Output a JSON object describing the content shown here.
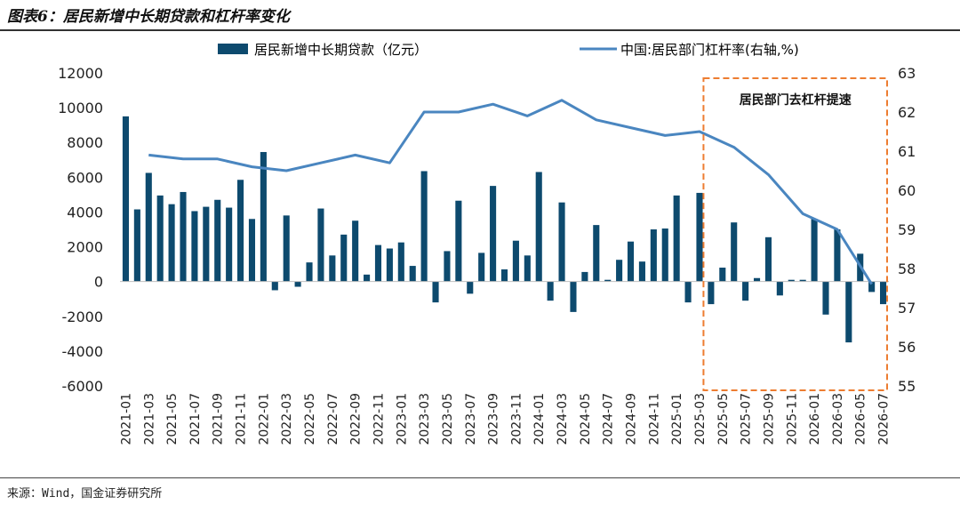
{
  "title": "图表6：居民新增中长期贷款和杠杆率变化",
  "source": "来源：Wind，国金证券研究所",
  "colors": {
    "bars": "#0d4a6e",
    "line": "#4a86c0",
    "box": "#ed7d31"
  },
  "chart_data": {
    "type": "bar+line",
    "categories": [
      "2021-01",
      "2021-02",
      "2021-03",
      "2021-04",
      "2021-05",
      "2021-06",
      "2021-07",
      "2021-08",
      "2021-09",
      "2021-10",
      "2021-11",
      "2021-12",
      "2022-01",
      "2022-02",
      "2022-03",
      "2022-04",
      "2022-05",
      "2022-06",
      "2022-07",
      "2022-08",
      "2022-09",
      "2022-10",
      "2022-11",
      "2022-12",
      "2023-01",
      "2023-02",
      "2023-03",
      "2023-04",
      "2023-05",
      "2023-06",
      "2023-07",
      "2023-08",
      "2023-09",
      "2023-10",
      "2023-11",
      "2023-12",
      "2024-01",
      "2024-02",
      "2024-03",
      "2024-04",
      "2024-05",
      "2024-06",
      "2024-07",
      "2024-08",
      "2024-09",
      "2024-10",
      "2024-11",
      "2024-12",
      "2025-01",
      "2025-02",
      "2025-03",
      "2025-04",
      "2025-05",
      "2025-06",
      "2025-07",
      "2025-08",
      "2025-09",
      "2025-10",
      "2025-11",
      "2025-12",
      "2026-01",
      "2026-02",
      "2026-03",
      "2026-04",
      "2026-05",
      "2026-06",
      "2026-07"
    ],
    "tick_labels": [
      "2021-01",
      "2021-03",
      "2021-05",
      "2021-07",
      "2021-09",
      "2021-11",
      "2022-01",
      "2022-03",
      "2022-05",
      "2022-07",
      "2022-09",
      "2022-11",
      "2023-01",
      "2023-03",
      "2023-05",
      "2023-07",
      "2023-09",
      "2023-11",
      "2024-01",
      "2024-03",
      "2024-05",
      "2024-07",
      "2024-09",
      "2024-11",
      "2025-01",
      "2025-03",
      "2025-05",
      "2025-07",
      "2025-09",
      "2025-11",
      "2026-01",
      "2026-03",
      "2026-05",
      "2026-07"
    ],
    "bar_series": {
      "name": "居民新增中长期贷款（亿元）",
      "values": [
        9500,
        4150,
        6250,
        4950,
        4450,
        5150,
        4050,
        4300,
        4700,
        4250,
        5850,
        3600,
        7450,
        -500,
        3800,
        -300,
        1100,
        4200,
        1500,
        2700,
        3500,
        400,
        2100,
        1900,
        2250,
        900,
        6350,
        -1200,
        1750,
        4650,
        -700,
        1650,
        5500,
        700,
        2350,
        1500,
        6300,
        -1100,
        4550,
        -1750,
        550,
        3250,
        100,
        1250,
        2300,
        1150,
        3000,
        3050,
        4950,
        -1200,
        5100,
        -1300,
        800,
        3400,
        -1100,
        200,
        2550,
        -800,
        100,
        100,
        3600,
        -1900,
        3000,
        -3500,
        1600,
        -600,
        -1300
      ]
    },
    "line_series": {
      "name": "中国:居民部门杠杆率(右轴,%)",
      "points": [
        [
          "2021-03",
          60.9
        ],
        [
          "2021-06",
          60.8
        ],
        [
          "2021-09",
          60.8
        ],
        [
          "2021-12",
          60.6
        ],
        [
          "2022-03",
          60.5
        ],
        [
          "2022-06",
          60.7
        ],
        [
          "2022-09",
          60.9
        ],
        [
          "2022-12",
          60.7
        ],
        [
          "2023-03",
          62.0
        ],
        [
          "2023-06",
          62.0
        ],
        [
          "2023-09",
          62.2
        ],
        [
          "2023-12",
          61.9
        ],
        [
          "2024-03",
          62.3
        ],
        [
          "2024-06",
          61.8
        ],
        [
          "2024-09",
          61.6
        ],
        [
          "2024-12",
          61.4
        ],
        [
          "2025-03",
          61.5
        ],
        [
          "2025-06",
          61.1
        ],
        [
          "2025-09",
          60.4
        ],
        [
          "2025-12",
          59.4
        ],
        [
          "2026-03",
          59.0
        ],
        [
          "2026-06",
          57.6
        ]
      ]
    },
    "y_left": {
      "min": -6000,
      "max": 12000,
      "step": 2000,
      "ticks": [
        "-6000",
        "-4000",
        "-2000",
        "0",
        "2000",
        "4000",
        "6000",
        "8000",
        "10000",
        "12000"
      ]
    },
    "y_right": {
      "min": 55,
      "max": 63,
      "step": 1,
      "ticks": [
        "55",
        "56",
        "57",
        "58",
        "59",
        "60",
        "61",
        "62",
        "63"
      ]
    },
    "legend_placement": "top",
    "annotation": {
      "text": "居民部门去杠杆提速",
      "from": "2025-04",
      "to": "2026-07"
    },
    "grid": false
  }
}
